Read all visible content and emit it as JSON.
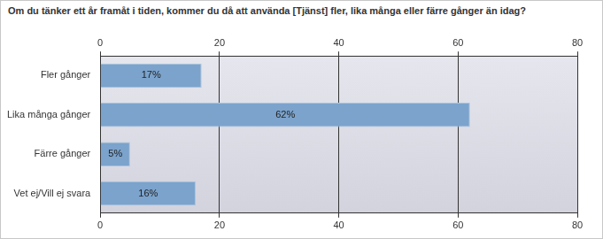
{
  "chart_data": {
    "type": "bar",
    "title": "Om du tänker ett år framåt i tiden, kommer du då att använda [Tjänst] fler, lika många eller färre gånger än idag?",
    "orientation": "horizontal",
    "categories": [
      "Fler gånger",
      "Lika många gånger",
      "Färre gånger",
      "Vet ej/Vill ej svara"
    ],
    "values": [
      17,
      62,
      5,
      16
    ],
    "value_labels": [
      "17%",
      "62%",
      "5%",
      "16%"
    ],
    "color": "#7ba3cc",
    "xlim": [
      0,
      80
    ],
    "xticks": [
      0,
      20,
      40,
      60,
      80
    ],
    "grid": true,
    "data_labels": true
  }
}
